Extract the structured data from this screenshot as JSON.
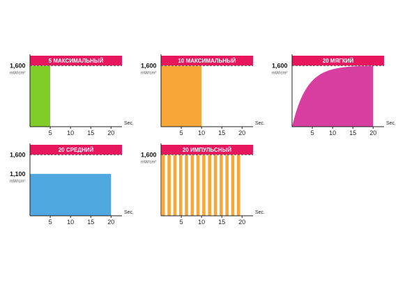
{
  "colors": {
    "banner": "#e8175d",
    "axis": "#222222",
    "dashed": "#666666"
  },
  "chart_data": [
    {
      "type": "area",
      "title": "5 МАКСИМАЛЬНЫЙ",
      "color": "#80cc28",
      "profile": "constant",
      "duration": 5,
      "level": 1600,
      "ref_level": 1600,
      "xticks": [
        5,
        10,
        15,
        20
      ],
      "xlim": [
        0,
        22.7
      ],
      "ylim": [
        0,
        1900
      ],
      "ytick_labels": [
        {
          "value": 1600,
          "label": "1,600"
        }
      ],
      "ylabel": "mW/cm²",
      "xlabel": "Sec."
    },
    {
      "type": "area",
      "title": "10 МАКСИМАЛЬНЫЙ",
      "color": "#f8a637",
      "profile": "constant",
      "duration": 10,
      "level": 1600,
      "ref_level": 1600,
      "xticks": [
        5,
        10,
        15,
        20
      ],
      "xlim": [
        0,
        22.7
      ],
      "ylim": [
        0,
        1900
      ],
      "ytick_labels": [
        {
          "value": 1600,
          "label": "1,600"
        }
      ],
      "ylabel": "mW/cm²",
      "xlabel": "Sec."
    },
    {
      "type": "area",
      "title": "20 МЯГКИЙ",
      "color": "#d83e9f",
      "profile": "soft",
      "duration": 20,
      "level": 1600,
      "ref_level": 1600,
      "xticks": [
        5,
        10,
        15,
        20
      ],
      "xlim": [
        0,
        22.7
      ],
      "ylim": [
        0,
        1900
      ],
      "ytick_labels": [
        {
          "value": 1600,
          "label": "1,600"
        }
      ],
      "ylabel": "mW/cm²",
      "xlabel": "Sec."
    },
    {
      "type": "area",
      "title": "20 СРЕДНИЙ",
      "color": "#4fa8e0",
      "profile": "constant",
      "duration": 20,
      "level": 1100,
      "ref_level": 1600,
      "xticks": [
        5,
        10,
        15,
        20
      ],
      "xlim": [
        0,
        22.7
      ],
      "ylim": [
        0,
        1900
      ],
      "ytick_labels": [
        {
          "value": 1600,
          "label": "1,600"
        },
        {
          "value": 1100,
          "label": "1,100"
        }
      ],
      "ylabel": "mW/cm²",
      "xlabel": "Sec."
    },
    {
      "type": "bar",
      "title": "20 ИМПУЛЬСНЫЙ",
      "color": "#f8a637",
      "profile": "pulse",
      "duration": 20,
      "pulses": 14,
      "level": 1600,
      "ref_level": 1600,
      "xticks": [
        5,
        10,
        15,
        20
      ],
      "xlim": [
        0,
        22.7
      ],
      "ylim": [
        0,
        1900
      ],
      "ytick_labels": [
        {
          "value": 1600,
          "label": "1,600"
        }
      ],
      "ylabel": "mW/cm²",
      "xlabel": "Sec."
    }
  ]
}
